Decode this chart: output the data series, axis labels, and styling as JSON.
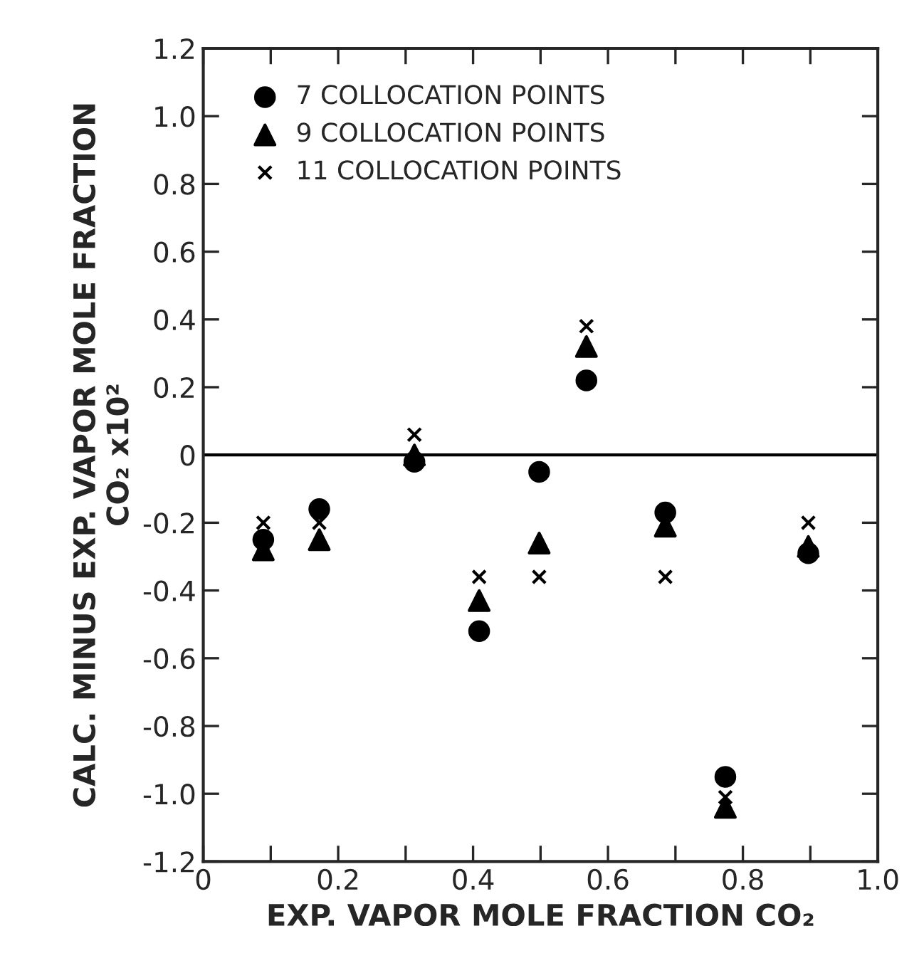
{
  "chart_data": {
    "type": "scatter",
    "xlabel": "EXP. VAPOR MOLE FRACTION CO₂",
    "ylabel": "CALC. MINUS EXP. VAPOR MOLE FRACTION\nCO₂ x10²",
    "x": [
      0.089,
      0.172,
      0.313,
      0.409,
      0.498,
      0.568,
      0.685,
      0.774,
      0.897
    ],
    "series": [
      {
        "name": "7 COLLOCATION POINTS",
        "color": "#000000",
        "marker": "circle",
        "values": [
          -0.25,
          -0.16,
          -0.02,
          -0.52,
          -0.05,
          0.22,
          -0.17,
          -0.95,
          -0.29
        ]
      },
      {
        "name": "9 COLLOCATION POINTS",
        "color": "#000000",
        "marker": "triangle",
        "values": [
          -0.28,
          -0.25,
          0.0,
          -0.43,
          -0.26,
          0.32,
          -0.21,
          -1.04,
          -0.27
        ]
      },
      {
        "name": "11 COLLOCATION POINTS",
        "color": "#000000",
        "marker": "cross",
        "values": [
          -0.2,
          -0.2,
          0.06,
          -0.36,
          -0.36,
          0.38,
          -0.36,
          -1.01,
          -0.2
        ]
      }
    ],
    "xlim": [
      0,
      1.0
    ],
    "ylim": [
      -1.2,
      1.2
    ],
    "xticks": [
      0,
      {
        "value": 0.1,
        "label": null
      },
      0.2,
      {
        "value": 0.3,
        "label": null
      },
      0.4,
      {
        "value": 0.5,
        "label": null
      },
      0.6,
      {
        "value": 0.7,
        "label": null
      },
      0.8,
      {
        "value": 0.9,
        "label": null
      },
      {
        "value": 1.0,
        "label": "1.0"
      }
    ],
    "yticks": [
      -1.2,
      {
        "value": -1.0,
        "label": "-1.0"
      },
      -0.8,
      -0.6,
      -0.4,
      -0.2,
      0,
      0.2,
      0.4,
      0.6,
      0.8,
      {
        "value": 1.0,
        "label": "1.0"
      },
      1.2
    ],
    "ref_lines": [
      {
        "axis": "y",
        "value": 0,
        "color": "#000000",
        "line_style": "solid"
      }
    ],
    "grid": false,
    "legend": "top left"
  }
}
